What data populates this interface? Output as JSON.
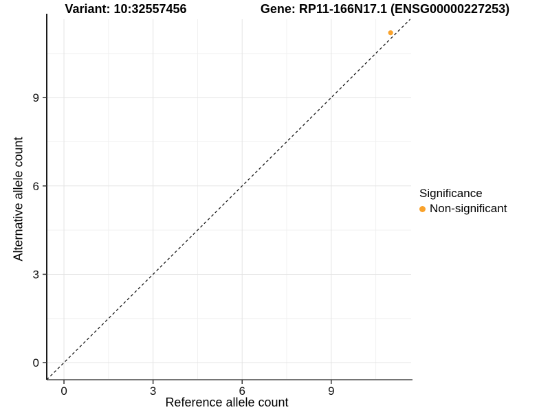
{
  "titles": {
    "variant": "Variant: 10:32557456",
    "gene": "Gene: RP11-166N17.1 (ENSG00000227253)"
  },
  "legend": {
    "title": "Significance",
    "items": [
      {
        "label": "Non-significant",
        "color": "#F9A22B"
      }
    ]
  },
  "colors": {
    "point": "#F9A22B",
    "grid_major": "#e3e3e3",
    "grid_minor": "#f0f0f0",
    "y_axis_line": "#1b1b1b",
    "x_axis_line": "#757575",
    "tick": "#333333",
    "text": "#111111",
    "reference_line": "#1a1a1a",
    "background": "#ffffff"
  },
  "chart_data": {
    "type": "scatter",
    "title_left": "Variant: 10:32557456",
    "title_right": "Gene: RP11-166N17.1 (ENSG00000227253)",
    "xlabel": "Reference allele count",
    "ylabel": "Alternative allele count",
    "xlim": [
      -0.58,
      11.69
    ],
    "ylim": [
      -0.58,
      11.66
    ],
    "xticks": [
      0,
      3,
      6,
      9
    ],
    "yticks": [
      0,
      3,
      6,
      9
    ],
    "minor_ticks": [
      1.5,
      4.5,
      7.5,
      10.5
    ],
    "grid": true,
    "legend_position": "right",
    "reference_line": {
      "equation": "y = x",
      "style": "dashed"
    },
    "series": [
      {
        "name": "Non-significant",
        "color": "#F9A22B",
        "points": [
          {
            "x": 11,
            "y": 11.2
          }
        ]
      }
    ]
  }
}
